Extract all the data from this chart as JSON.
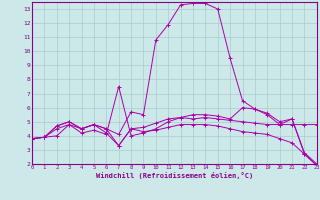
{
  "xlabel": "Windchill (Refroidissement éolien,°C)",
  "xlim": [
    0,
    23
  ],
  "ylim": [
    2,
    13.5
  ],
  "xticks": [
    0,
    1,
    2,
    3,
    4,
    5,
    6,
    7,
    8,
    9,
    10,
    11,
    12,
    13,
    14,
    15,
    16,
    17,
    18,
    19,
    20,
    21,
    22,
    23
  ],
  "yticks": [
    2,
    3,
    4,
    5,
    6,
    7,
    8,
    9,
    10,
    11,
    12,
    13
  ],
  "bg_color": "#cce8e8",
  "grid_color": "#aacccc",
  "line_color": "#aa00aa",
  "series": [
    [
      3.8,
      3.9,
      4.0,
      4.8,
      4.5,
      4.8,
      4.5,
      4.1,
      5.7,
      5.5,
      10.8,
      11.9,
      13.3,
      13.4,
      13.4,
      13.0,
      9.5,
      6.5,
      5.9,
      5.5,
      4.8,
      5.2,
      2.7,
      1.9
    ],
    [
      3.8,
      3.9,
      4.7,
      5.0,
      4.5,
      4.8,
      4.5,
      3.3,
      4.5,
      4.6,
      4.9,
      5.2,
      5.3,
      5.2,
      5.3,
      5.2,
      5.1,
      5.0,
      4.9,
      4.8,
      4.8,
      4.8,
      4.8,
      4.8
    ],
    [
      3.8,
      3.9,
      4.7,
      5.0,
      4.5,
      4.8,
      4.2,
      3.3,
      4.5,
      4.3,
      4.4,
      4.6,
      4.8,
      4.8,
      4.8,
      4.7,
      4.5,
      4.3,
      4.2,
      4.1,
      3.8,
      3.5,
      2.7,
      1.9
    ],
    [
      3.8,
      3.9,
      4.5,
      4.8,
      4.2,
      4.4,
      4.1,
      7.5,
      4.0,
      4.2,
      4.5,
      5.0,
      5.3,
      5.5,
      5.5,
      5.4,
      5.2,
      6.0,
      5.9,
      5.6,
      5.0,
      5.2,
      2.8,
      2.0
    ]
  ]
}
